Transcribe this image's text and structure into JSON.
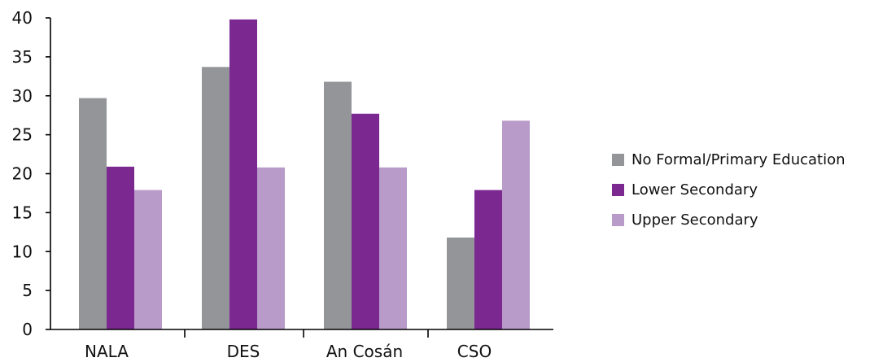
{
  "chart_data": {
    "type": "bar",
    "title": "",
    "xlabel": "",
    "ylabel": "",
    "categories": [
      "NALA",
      "DES",
      "An Cosán",
      "CSO"
    ],
    "series": [
      {
        "name": "No Formal/Primary Education",
        "values": [
          29.7,
          33.7,
          31.8,
          11.8
        ],
        "color": "#939598"
      },
      {
        "name": "Lower Secondary",
        "values": [
          20.9,
          39.8,
          27.7,
          17.9
        ],
        "color": "#7b2890"
      },
      {
        "name": "Upper Secondary",
        "values": [
          17.9,
          20.8,
          20.8,
          26.8
        ],
        "color": "#b99bc9"
      }
    ],
    "ylim": [
      0,
      40
    ],
    "yticks": [
      0,
      5,
      10,
      15,
      20,
      25,
      30,
      35,
      40
    ],
    "grid": false,
    "legend_position": "right"
  }
}
